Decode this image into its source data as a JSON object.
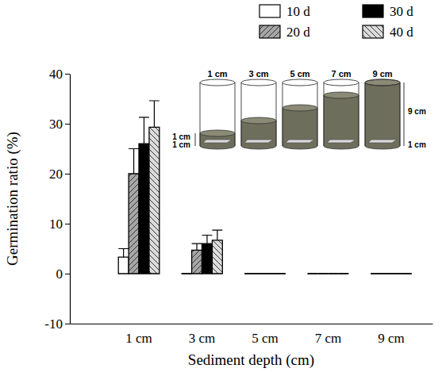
{
  "chart_data": {
    "type": "bar",
    "x_label": "Sediment depth (cm)",
    "y_label": "Germination ratio (%)",
    "categories": [
      "1 cm",
      "3 cm",
      "5 cm",
      "7 cm",
      "9 cm"
    ],
    "series": [
      {
        "name": "10 d",
        "color": "#ffffff",
        "values": [
          3.3,
          0,
          0,
          0,
          0
        ],
        "errors": [
          1.7,
          0,
          0,
          0,
          0
        ]
      },
      {
        "name": "20 d",
        "color": "#a6a6a6",
        "values": [
          20,
          4.7,
          0,
          0,
          0
        ],
        "errors": [
          5,
          1.3,
          0,
          0,
          0
        ]
      },
      {
        "name": "30 d",
        "color": "#000000",
        "values": [
          26,
          6,
          0,
          0,
          0
        ],
        "errors": [
          5.3,
          1.7,
          0,
          0,
          0
        ]
      },
      {
        "name": "40 d",
        "color": "#dcdcdc",
        "values": [
          29.3,
          6.7,
          0,
          0,
          0
        ],
        "errors": [
          5.3,
          2,
          0,
          0,
          0
        ]
      }
    ],
    "ylim": [
      -10,
      40
    ],
    "yticks": [
      -10,
      0,
      10,
      20,
      30,
      40
    ],
    "legend": "top-right",
    "annotations": {
      "columns": [
        "1 cm",
        "3 cm",
        "5 cm",
        "7 cm",
        "9 cm"
      ],
      "sediment_depths": [
        1,
        3,
        5,
        7,
        9
      ],
      "left": [
        "1 cm",
        "1 cm"
      ],
      "right": [
        "9 cm",
        "1 cm"
      ]
    }
  }
}
